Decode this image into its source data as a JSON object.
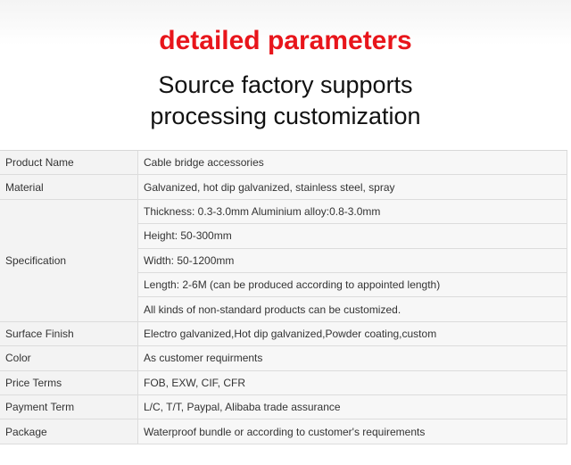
{
  "header": {
    "title": "detailed parameters",
    "subtitle_lines": [
      "Source factory supports",
      "processing customization"
    ]
  },
  "table": {
    "rows": [
      {
        "label": "Product Name",
        "values": [
          "Cable bridge accessories"
        ]
      },
      {
        "label": "Material",
        "values": [
          "Galvanized, hot dip galvanized, stainless steel, spray"
        ]
      },
      {
        "label": "Specification",
        "values": [
          "Thickness: 0.3-3.0mm Aluminium alloy:0.8-3.0mm",
          "Height: 50-300mm",
          "Width: 50-1200mm",
          "Length: 2-6M (can be produced according to appointed length)",
          "All kinds of non-standard products can be customized."
        ]
      },
      {
        "label": "Surface Finish",
        "values": [
          "Electro galvanized,Hot dip galvanized,Powder coating,custom"
        ]
      },
      {
        "label": "Color",
        "values": [
          "As customer requirments"
        ]
      },
      {
        "label": "Price Terms",
        "values": [
          "FOB, EXW, CIF, CFR"
        ]
      },
      {
        "label": "Payment Term",
        "values": [
          "L/C, T/T, Paypal, Alibaba trade assurance"
        ]
      },
      {
        "label": "Package",
        "values": [
          "Waterproof bundle or according to customer's requirements"
        ]
      }
    ]
  }
}
